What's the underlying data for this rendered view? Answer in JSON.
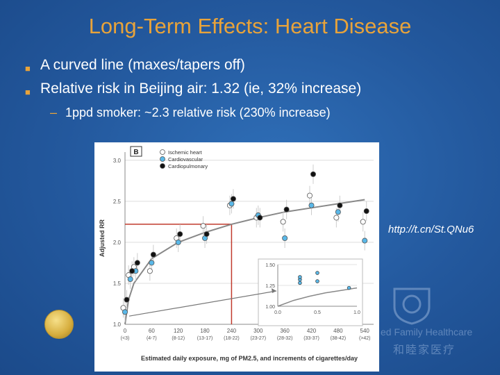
{
  "slide": {
    "title": "Long-Term Effects: Heart Disease",
    "bullets": [
      "A curved line (maxes/tapers off)",
      "Relative risk in Beijing air: 1.32 (ie, 32% increase)"
    ],
    "sub_bullet": "1ppd smoker: ~2.3 relative risk (230% increase)",
    "url": "http://t.cn/St.QNu6",
    "watermark_en": "ed Family Healthcare",
    "watermark_cn": "和睦家医疗",
    "accent_color": "#e8a33a",
    "text_color": "#ffffff",
    "background_color": "#23589d"
  },
  "chart_data": [
    {
      "type": "scatter",
      "panel_label": "B",
      "xlabel": "Estimated daily exposure, mg of PM2.5, and increments of cigarettes/day",
      "ylabel": "Adjusted RR",
      "xlim": [
        0,
        560
      ],
      "ylim": [
        1.0,
        3.1
      ],
      "x_ticks": [
        0,
        60,
        120,
        180,
        240,
        300,
        360,
        420,
        480,
        540
      ],
      "x_tick_sublabels": [
        "(<3)",
        "(4-7)",
        "(8-12)",
        "(13-17)",
        "(18-22)",
        "(23-27)",
        "(28-32)",
        "(33-37)",
        "(38-42)",
        "(>42)"
      ],
      "y_ticks": [
        1.0,
        1.5,
        2.0,
        2.5,
        3.0
      ],
      "legend": {
        "position": "top-left",
        "entries": [
          "Ischemic heart",
          "Cardiovascular",
          "Cardiopulmonary"
        ]
      },
      "series": [
        {
          "name": "Ischemic heart",
          "color": "#ffffff",
          "points": [
            [
              0,
              1.2
            ],
            [
              12,
              1.6
            ],
            [
              24,
              1.7
            ],
            [
              60,
              1.65
            ],
            [
              120,
              2.05
            ],
            [
              180,
              2.2
            ],
            [
              240,
              2.45
            ],
            [
              300,
              2.3
            ],
            [
              360,
              2.25
            ],
            [
              420,
              2.57
            ],
            [
              480,
              2.3
            ],
            [
              540,
              2.25
            ]
          ]
        },
        {
          "name": "Cardiovascular",
          "color": "#5ab8e8",
          "points": [
            [
              0,
              1.15
            ],
            [
              12,
              1.55
            ],
            [
              24,
              1.65
            ],
            [
              60,
              1.75
            ],
            [
              120,
              2.0
            ],
            [
              180,
              2.05
            ],
            [
              240,
              2.47
            ],
            [
              300,
              2.33
            ],
            [
              360,
              2.05
            ],
            [
              420,
              2.45
            ],
            [
              480,
              2.37
            ],
            [
              540,
              2.02
            ]
          ]
        },
        {
          "name": "Cardiopulmonary",
          "color": "#111111",
          "points": [
            [
              0,
              1.3
            ],
            [
              12,
              1.65
            ],
            [
              24,
              1.75
            ],
            [
              60,
              1.85
            ],
            [
              120,
              2.1
            ],
            [
              180,
              2.1
            ],
            [
              240,
              2.53
            ],
            [
              300,
              2.3
            ],
            [
              360,
              2.4
            ],
            [
              420,
              2.83
            ],
            [
              480,
              2.45
            ],
            [
              540,
              2.38
            ]
          ]
        }
      ],
      "fitted_curve": [
        [
          0,
          1.0
        ],
        [
          8,
          1.3
        ],
        [
          20,
          1.5
        ],
        [
          60,
          1.8
        ],
        [
          120,
          2.0
        ],
        [
          180,
          2.12
        ],
        [
          240,
          2.22
        ],
        [
          300,
          2.3
        ],
        [
          360,
          2.37
        ],
        [
          420,
          2.42
        ],
        [
          480,
          2.47
        ],
        [
          540,
          2.52
        ]
      ],
      "reference_lines": [
        {
          "at_x": 240,
          "from_rr": 1.0,
          "to_rr": 2.22,
          "color": "#c0392b"
        },
        {
          "at_rr": 2.22,
          "from_x": 0,
          "to_x": 240,
          "color": "#c0392b"
        }
      ]
    },
    {
      "type": "scatter",
      "role": "inset",
      "xlim": [
        0,
        1.0
      ],
      "ylim": [
        1.0,
        1.5
      ],
      "x_ticks": [
        0.0,
        0.5,
        1.0
      ],
      "y_ticks": [
        1.0,
        1.25,
        1.5
      ],
      "points": [
        [
          0.28,
          1.32
        ],
        [
          0.28,
          1.35
        ],
        [
          0.28,
          1.28
        ],
        [
          0.5,
          1.4
        ],
        [
          0.5,
          1.3
        ],
        [
          0.9,
          1.22
        ]
      ],
      "fitted_curve": [
        [
          0.0,
          1.0
        ],
        [
          0.2,
          1.07
        ],
        [
          0.4,
          1.12
        ],
        [
          0.6,
          1.16
        ],
        [
          0.8,
          1.19
        ],
        [
          1.0,
          1.22
        ]
      ]
    }
  ]
}
